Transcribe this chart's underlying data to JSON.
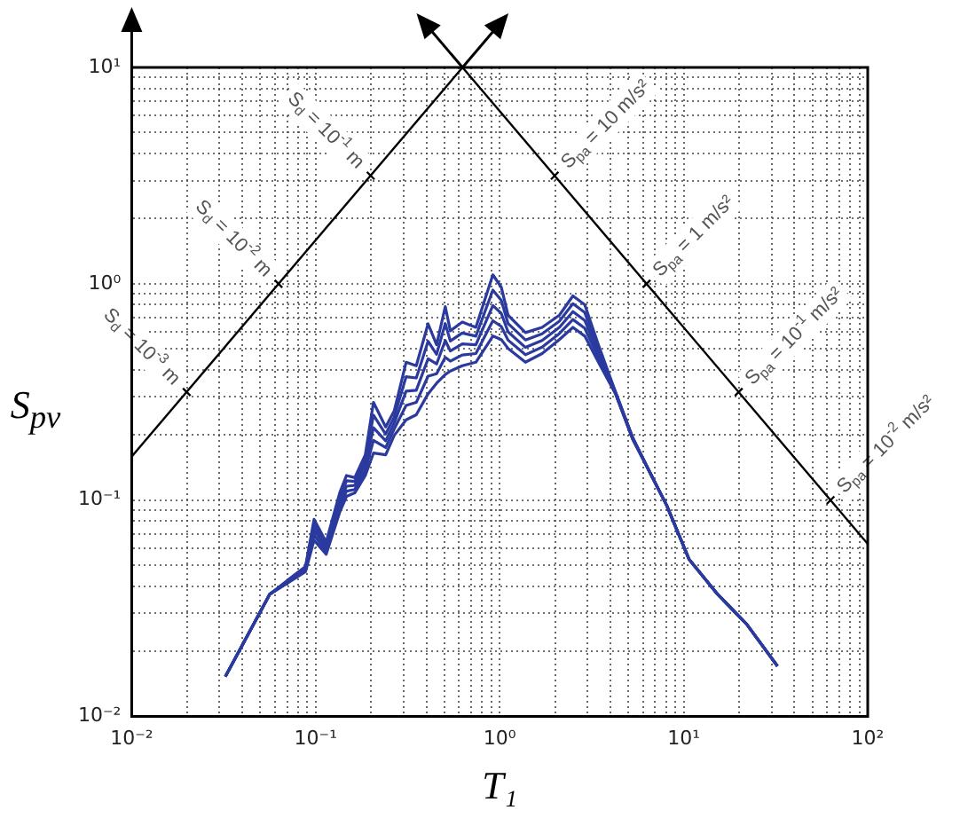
{
  "chart_data": {
    "type": "line",
    "xlabel": "T₁",
    "ylabel": "S$_{pv}$",
    "log": "xy",
    "grid": true,
    "legend": false,
    "marker": "none",
    "line_style": "solid",
    "xlim": [
      0.01,
      100
    ],
    "ylim": [
      0.01,
      10
    ],
    "xticks": [
      {
        "value": 0.01,
        "label": "10⁻²"
      },
      {
        "value": 0.02,
        "label": null
      },
      {
        "value": 0.03,
        "label": null
      },
      {
        "value": 0.04,
        "label": null
      },
      {
        "value": 0.05,
        "label": null
      },
      {
        "value": 0.06,
        "label": null
      },
      {
        "value": 0.07,
        "label": null
      },
      {
        "value": 0.08,
        "label": null
      },
      {
        "value": 0.09,
        "label": null
      },
      {
        "value": 0.1,
        "label": "10⁻¹"
      },
      {
        "value": 0.2,
        "label": null
      },
      {
        "value": 0.3,
        "label": null
      },
      {
        "value": 0.4,
        "label": null
      },
      {
        "value": 0.5,
        "label": null
      },
      {
        "value": 0.6,
        "label": null
      },
      {
        "value": 0.7,
        "label": null
      },
      {
        "value": 0.8,
        "label": null
      },
      {
        "value": 0.9,
        "label": null
      },
      {
        "value": 1,
        "label": "10⁰"
      },
      {
        "value": 2,
        "label": null
      },
      {
        "value": 3,
        "label": null
      },
      {
        "value": 4,
        "label": null
      },
      {
        "value": 5,
        "label": null
      },
      {
        "value": 6,
        "label": null
      },
      {
        "value": 7,
        "label": null
      },
      {
        "value": 8,
        "label": null
      },
      {
        "value": 9,
        "label": null
      },
      {
        "value": 10,
        "label": "10¹"
      },
      {
        "value": 20,
        "label": null
      },
      {
        "value": 30,
        "label": null
      },
      {
        "value": 40,
        "label": null
      },
      {
        "value": 50,
        "label": null
      },
      {
        "value": 60,
        "label": null
      },
      {
        "value": 70,
        "label": null
      },
      {
        "value": 80,
        "label": null
      },
      {
        "value": 90,
        "label": null
      },
      {
        "value": 100,
        "label": "10²"
      }
    ],
    "yticks": [
      {
        "value": 0.01,
        "label": "10⁻²"
      },
      {
        "value": 0.02,
        "label": null
      },
      {
        "value": 0.03,
        "label": null
      },
      {
        "value": 0.04,
        "label": null
      },
      {
        "value": 0.05,
        "label": null
      },
      {
        "value": 0.06,
        "label": null
      },
      {
        "value": 0.07,
        "label": null
      },
      {
        "value": 0.08,
        "label": null
      },
      {
        "value": 0.09,
        "label": null
      },
      {
        "value": 0.1,
        "label": "10⁻¹"
      },
      {
        "value": 0.2,
        "label": null
      },
      {
        "value": 0.3,
        "label": null
      },
      {
        "value": 0.4,
        "label": null
      },
      {
        "value": 0.5,
        "label": null
      },
      {
        "value": 0.6,
        "label": null
      },
      {
        "value": 0.7,
        "label": null
      },
      {
        "value": 0.8,
        "label": null
      },
      {
        "value": 0.9,
        "label": null
      },
      {
        "value": 1,
        "label": "10⁰"
      },
      {
        "value": 2,
        "label": null
      },
      {
        "value": 3,
        "label": null
      },
      {
        "value": 4,
        "label": null
      },
      {
        "value": 5,
        "label": null
      },
      {
        "value": 6,
        "label": null
      },
      {
        "value": 7,
        "label": null
      },
      {
        "value": 8,
        "label": null
      },
      {
        "value": 9,
        "label": null
      },
      {
        "value": 10,
        "label": "10¹"
      }
    ],
    "x": [
      0.0323,
      0.0562,
      0.0742,
      0.088,
      0.098,
      0.114,
      0.135,
      0.147,
      0.163,
      0.186,
      0.206,
      0.24,
      0.267,
      0.31,
      0.352,
      0.408,
      0.454,
      0.506,
      0.539,
      0.626,
      0.742,
      0.918,
      1.02,
      1.11,
      1.38,
      1.7,
      2.11,
      2.5,
      2.9,
      3.44,
      4.26,
      5.28,
      6.53,
      8.08,
      10.7,
      15.3,
      22,
      32.3
    ],
    "series": [
      {
        "color": "#2b3a9e",
        "values": [
          0.0153,
          0.0367,
          0.0442,
          0.0494,
          0.0815,
          0.064,
          0.108,
          0.13,
          0.127,
          0.162,
          0.283,
          0.218,
          0.258,
          0.434,
          0.418,
          0.653,
          0.522,
          0.785,
          0.606,
          0.665,
          0.629,
          1.1,
          0.964,
          0.716,
          0.595,
          0.629,
          0.716,
          0.879,
          0.8,
          0.522,
          0.316,
          0.195,
          0.135,
          0.0946,
          0.0532,
          0.0367,
          0.0267,
          0.0171
        ]
      },
      {
        "color": "#2b3a9e",
        "values": [
          0.0153,
          0.0367,
          0.0438,
          0.0487,
          0.077,
          0.062,
          0.102,
          0.123,
          0.122,
          0.153,
          0.247,
          0.202,
          0.242,
          0.372,
          0.367,
          0.542,
          0.472,
          0.655,
          0.544,
          0.592,
          0.573,
          0.935,
          0.839,
          0.655,
          0.55,
          0.587,
          0.672,
          0.809,
          0.736,
          0.498,
          0.315,
          0.194,
          0.135,
          0.0946,
          0.0532,
          0.0367,
          0.0267,
          0.0171
        ]
      },
      {
        "color": "#2b3a9e",
        "values": [
          0.0153,
          0.0367,
          0.0434,
          0.048,
          0.073,
          0.06,
          0.097,
          0.116,
          0.117,
          0.145,
          0.216,
          0.188,
          0.227,
          0.319,
          0.322,
          0.45,
          0.426,
          0.547,
          0.489,
          0.527,
          0.522,
          0.794,
          0.73,
          0.6,
          0.508,
          0.547,
          0.629,
          0.744,
          0.677,
          0.476,
          0.313,
          0.193,
          0.135,
          0.0946,
          0.0532,
          0.0367,
          0.0267,
          0.0171
        ]
      },
      {
        "color": "#2b3a9e",
        "values": [
          0.0153,
          0.0367,
          0.043,
          0.0473,
          0.069,
          0.058,
          0.092,
          0.11,
          0.112,
          0.137,
          0.189,
          0.175,
          0.213,
          0.274,
          0.283,
          0.374,
          0.384,
          0.457,
          0.439,
          0.469,
          0.476,
          0.675,
          0.635,
          0.549,
          0.47,
          0.51,
          0.589,
          0.684,
          0.623,
          0.455,
          0.311,
          0.192,
          0.135,
          0.0946,
          0.0532,
          0.0367,
          0.0267,
          0.0171
        ]
      },
      {
        "color": "#2b3a9e",
        "values": [
          0.0153,
          0.0367,
          0.0426,
          0.0467,
          0.0653,
          0.0562,
          0.0879,
          0.104,
          0.108,
          0.13,
          0.165,
          0.162,
          0.199,
          0.235,
          0.248,
          0.31,
          0.347,
          0.381,
          0.395,
          0.418,
          0.434,
          0.573,
          0.552,
          0.503,
          0.434,
          0.476,
          0.552,
          0.629,
          0.573,
          0.434,
          0.31,
          0.191,
          0.135,
          0.0946,
          0.0532,
          0.0367,
          0.0267,
          0.0171
        ]
      },
      {
        "type": "line",
        "color": "#000000",
        "x": [
          0.01,
          0.628
        ],
        "values": [
          0.159,
          10
        ]
      },
      {
        "type": "line",
        "color": "#000000",
        "x": [
          0.628,
          100
        ],
        "values": [
          10,
          0.0628
        ]
      }
    ],
    "annotations": [
      {
        "text": "S$_{d}$ = 10$^{-1}$ m",
        "x": 0.199,
        "y": 3.16
      },
      {
        "text": "S$_{d}$ = 10$^{-2}$ m",
        "x": 0.0628,
        "y": 1
      },
      {
        "text": "S$_{d}$ = 10$^{-3}$ m",
        "x": 0.0199,
        "y": 0.316
      },
      {
        "text": "S$_{pa}$ = 10 m/s²",
        "x": 1.99,
        "y": 3.16
      },
      {
        "text": "S$_{pa}$ = 1 m/s²",
        "x": 6.28,
        "y": 1
      },
      {
        "text": "S$_{pa}$ = 10$^{-1}$ m/s²",
        "x": 19.9,
        "y": 0.316
      },
      {
        "text": "S$_{pa}$ = 10$^{-2}$ m/s²",
        "x": 62.8,
        "y": 0.1
      }
    ]
  }
}
